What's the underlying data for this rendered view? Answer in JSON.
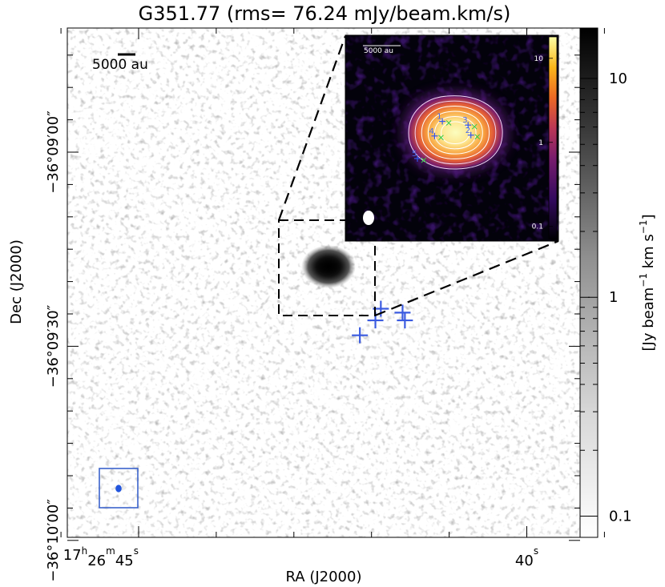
{
  "chart_data": {
    "type": "heatmap",
    "title": "G351.77 (rms= 76.24 mJy/beam.km/s)",
    "xlabel": "RA (J2000)",
    "ylabel": "Dec (J2000)",
    "colorbar": {
      "label": "[Jy beam",
      "label_sup1": "−1",
      "label_mid": " km s",
      "label_sup2": "−1",
      "label_end": "]",
      "scale": "log",
      "range": [
        0.08,
        17
      ],
      "ticks": [
        {
          "value": 0.1,
          "label": "0.1"
        },
        {
          "value": 1,
          "label": "1"
        },
        {
          "value": 10,
          "label": "10"
        }
      ],
      "minor_ticks": [
        0.2,
        0.3,
        0.4,
        0.5,
        0.6,
        0.7,
        0.8,
        0.9,
        2,
        3,
        4,
        5,
        6,
        7,
        8,
        9
      ]
    },
    "x_ticks": [
      {
        "ra_sec": 45,
        "h": "17",
        "hu": "h",
        "m": "26",
        "mu": "m",
        "s": "45",
        "su": "s"
      },
      {
        "ra_sec": 40,
        "h": "",
        "hu": "",
        "m": "",
        "mu": "",
        "s": "40",
        "su": "s"
      }
    ],
    "x_minor_ra_sec": [
      46,
      44,
      43,
      42,
      41,
      39
    ],
    "y_ticks": [
      {
        "dec_arcsec": 0,
        "label": "−36°09′00″"
      },
      {
        "dec_arcsec": 30,
        "label": "−36°09′30″"
      },
      {
        "dec_arcsec": 60,
        "label": "−36°10′00″"
      }
    ],
    "y_minor_dec_arcsec": [
      -15,
      -10,
      -5,
      5,
      10,
      15,
      20,
      25,
      35,
      40,
      45,
      50,
      55,
      65
    ],
    "scalebar": {
      "label": "5000 au"
    },
    "cores_main": [
      {
        "id": "1",
        "ra_sec": 41.88,
        "dec_arcsec": 24.2
      },
      {
        "id": "2",
        "ra_sec": 41.57,
        "dec_arcsec": 26.0
      },
      {
        "id": "3",
        "ra_sec": 41.6,
        "dec_arcsec": 24.8
      },
      {
        "id": "4",
        "ra_sec": 41.95,
        "dec_arcsec": 26.0
      },
      {
        "id": "5",
        "ra_sec": 42.15,
        "dec_arcsec": 28.3
      }
    ],
    "inset": {
      "colormap": "inferno",
      "scalebar_label": "5000 au",
      "colorbar_ticks": [
        {
          "value": 0.1,
          "label": "0.1"
        },
        {
          "value": 1,
          "label": "1"
        },
        {
          "value": 10,
          "label": "10"
        }
      ],
      "colorbar_range": [
        0.07,
        18
      ],
      "contour_levels": [
        0.9,
        1.8,
        3.0,
        4.5,
        6.5,
        9.0
      ],
      "cores": [
        {
          "id": "1",
          "dx": 0.28,
          "dy": -0.58
        },
        {
          "id": "2",
          "dx": 2.72,
          "dy": 0.6
        },
        {
          "id": "3",
          "dx": 2.48,
          "dy": -0.26
        },
        {
          "id": "4",
          "dx": -0.38,
          "dy": 0.67
        },
        {
          "id": "5",
          "dx": -1.85,
          "dy": 2.6
        }
      ]
    }
  }
}
